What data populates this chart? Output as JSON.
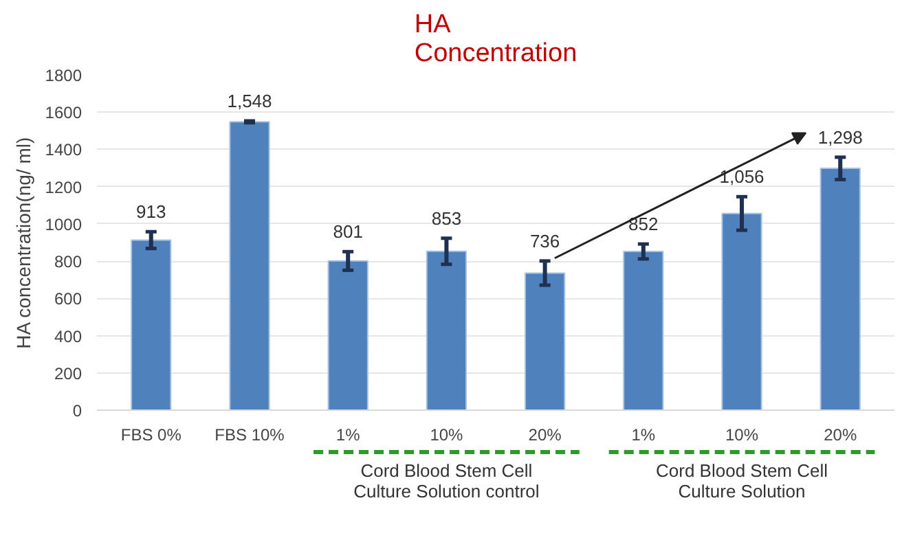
{
  "chart_data": {
    "type": "bar",
    "title": "HA\nConcentration",
    "ylabel": "HA concentration(ng/ ml)",
    "categories": [
      "FBS 0%",
      "FBS 10%",
      "1%",
      "10%",
      "20%",
      "1%",
      "10%",
      "20%"
    ],
    "values": [
      913,
      1548,
      801,
      853,
      736,
      852,
      1056,
      1298
    ],
    "errors": [
      45,
      5,
      50,
      70,
      65,
      40,
      90,
      60
    ],
    "color": "#4f81bd",
    "value_labels": [
      "913",
      "1,548",
      "801",
      "853",
      "736",
      "852",
      "1,056",
      "1,298"
    ],
    "ylim": [
      0,
      1800
    ],
    "yticks": [
      0,
      200,
      400,
      600,
      800,
      1000,
      1200,
      1400,
      1600,
      1800
    ],
    "grid": "y",
    "annotations": [
      "Cord Blood Stem Cell\nCulture Solution control",
      "Cord Blood Stem Cell\nCulture Solution"
    ]
  }
}
